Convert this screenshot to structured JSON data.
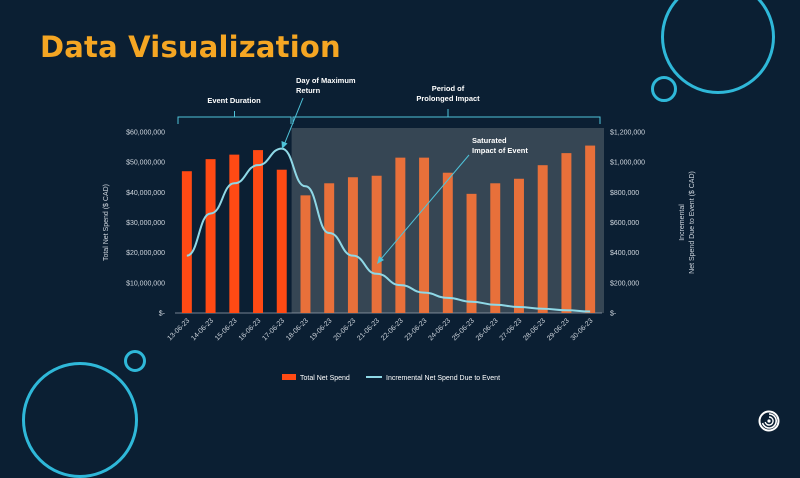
{
  "slide": {
    "title": "Data Visualization",
    "accent_color": "#f5a623",
    "background_color": "#0b1f33",
    "decoration_color": "#2fb8d9",
    "logo_icon": "swirl-logo-icon"
  },
  "chart_data": {
    "type": "bar",
    "categories": [
      "13-06-23",
      "14-06-23",
      "15-06-23",
      "16-06-23",
      "17-06-23",
      "18-06-23",
      "19-06-23",
      "20-06-23",
      "21-06-23",
      "22-06-23",
      "23-06-23",
      "24-06-23",
      "25-06-23",
      "26-06-23",
      "27-06-23",
      "28-06-23",
      "29-06-23",
      "30-06-23"
    ],
    "series": [
      {
        "name": "Total Net Spend",
        "kind": "bar",
        "axis": "left",
        "values": [
          47000000,
          51000000,
          52500000,
          54000000,
          47500000,
          39000000,
          43000000,
          45000000,
          45500000,
          51500000,
          51500000,
          46500000,
          39500000,
          43000000,
          44500000,
          49000000,
          53000000,
          55500000
        ],
        "color": "#ff4a14",
        "color_shaded": "#e8703a"
      },
      {
        "name": "Incremental Net Spend Due to Event",
        "kind": "line",
        "axis": "right",
        "values": [
          380000,
          660000,
          860000,
          980000,
          1090000,
          840000,
          530000,
          380000,
          260000,
          185000,
          135000,
          100000,
          75000,
          55000,
          40000,
          28000,
          18000,
          10000
        ],
        "color": "#8fd8e6"
      }
    ],
    "ylabel": "Total Net Spend ($ CAD)",
    "ylabel_right_line1": "Incremental",
    "ylabel_right_line2": "Net Spend Due to Event ($ CAD)",
    "ylim": [
      0,
      60000000
    ],
    "ylim_right": [
      0,
      1200000
    ],
    "yticks_left": [
      "$-",
      "$10,000,000",
      "$20,000,000",
      "$30,000,000",
      "$40,000,000",
      "$50,000,000",
      "$60,000,000"
    ],
    "yticks_right": [
      "$-",
      "$200,000",
      "$400,000",
      "$600,000",
      "$800,000",
      "$1,000,000",
      "$1,200,000"
    ],
    "shaded_region_color": "#3b4a58",
    "shaded_from_category": "18-06-23",
    "legend_position": "bottom",
    "grid": false,
    "annotations": {
      "event_duration": "Event Duration",
      "max_return_line1": "Day of Maximum",
      "max_return_line2": "Return",
      "prolonged_line1": "Period of",
      "prolonged_line2": "Prolonged Impact",
      "saturated_line1": "Saturated",
      "saturated_line2": "Impact of Event"
    }
  }
}
